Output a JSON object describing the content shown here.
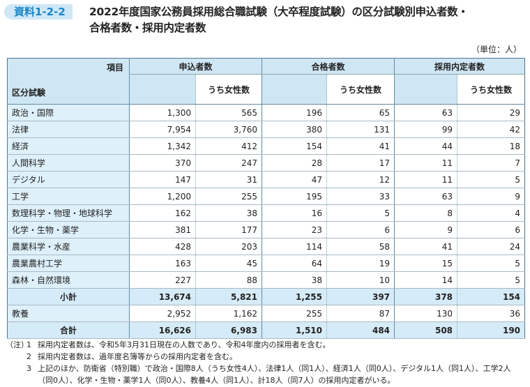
{
  "header": {
    "badge": "資料1-2-2",
    "title_lines": [
      "2022年度国家公務員採用総合職試験（大卒程度試験）の区分試験別申込者数・",
      "合格者数・採用内定者数"
    ],
    "unit": "（単位：人）"
  },
  "table": {
    "corner_top": "項目",
    "corner_bottom": "区分試験",
    "groups": [
      "申込者数",
      "合格者数",
      "採用内定者数"
    ],
    "subheaders": [
      "うち女性数",
      "うち女性数",
      "うち女性数"
    ],
    "rows": [
      [
        "政治・国際",
        "1,300",
        "565",
        "196",
        "65",
        "63",
        "29"
      ],
      [
        "法律",
        "7,954",
        "3,760",
        "380",
        "131",
        "99",
        "42"
      ],
      [
        "経済",
        "1,342",
        "412",
        "154",
        "41",
        "44",
        "18"
      ],
      [
        "人間科学",
        "370",
        "247",
        "28",
        "17",
        "11",
        "7"
      ],
      [
        "デジタル",
        "147",
        "31",
        "47",
        "12",
        "11",
        "5"
      ],
      [
        "工学",
        "1,200",
        "255",
        "195",
        "33",
        "63",
        "9"
      ],
      [
        "数理科学・物理・地球科学",
        "162",
        "38",
        "16",
        "5",
        "8",
        "4"
      ],
      [
        "化学・生物・薬学",
        "381",
        "177",
        "23",
        "6",
        "9",
        "6"
      ],
      [
        "農業科学・水産",
        "428",
        "203",
        "114",
        "58",
        "41",
        "24"
      ],
      [
        "農業農村工学",
        "163",
        "45",
        "64",
        "19",
        "15",
        "5"
      ],
      [
        "森林・自然環境",
        "227",
        "88",
        "38",
        "10",
        "14",
        "5"
      ],
      [
        "小計",
        "13,674",
        "5,821",
        "1,255",
        "397",
        "378",
        "154"
      ],
      [
        "教養",
        "2,952",
        "1,162",
        "255",
        "87",
        "130",
        "36"
      ],
      [
        "合計",
        "16,626",
        "6,983",
        "1,510",
        "484",
        "508",
        "190"
      ]
    ]
  },
  "notes": {
    "label": "（注）",
    "items": [
      {
        "num": "1",
        "text": "採用内定者数は、令和5年3月31日現在の人数であり、令和4年度内の採用者を含む。"
      },
      {
        "num": "2",
        "text": "採用内定者数は、過年度名簿等からの採用内定者を含む。"
      },
      {
        "num": "3",
        "text": "上記のほか、防衛省（特別職）で政治・国際8人（うち女性4人）、法律1人（同1人）、経済1人（同0人）、デジタル1人（同1人）、工学2人（同0人）、化学・生物・薬学1人（同0人）、教養4人（同1人）、計18人（同7人）の採用内定者がいる。"
      }
    ]
  }
}
